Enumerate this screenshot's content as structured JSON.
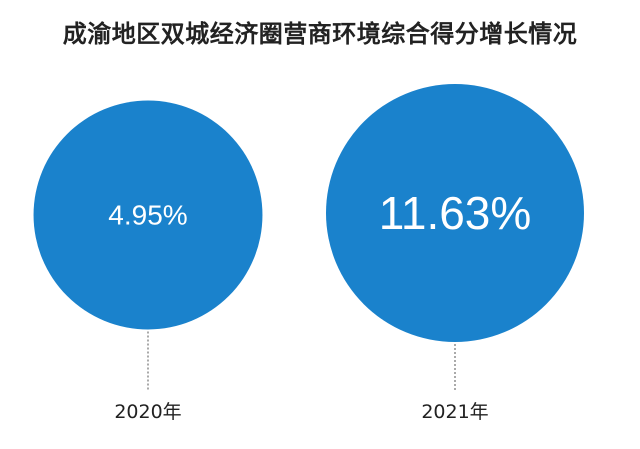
{
  "chart_data": {
    "type": "bubble",
    "title": "成渝地区双城经济圈营商环境综合得分增长情况",
    "categories": [
      "2020年",
      "2021年"
    ],
    "values": [
      4.95,
      11.63
    ],
    "value_labels": [
      "4.95%",
      "11.63%"
    ],
    "unit": "%",
    "colors": {
      "bubble": "#1a82cc",
      "label": "#ffffff",
      "leader_line": "#555555"
    }
  }
}
